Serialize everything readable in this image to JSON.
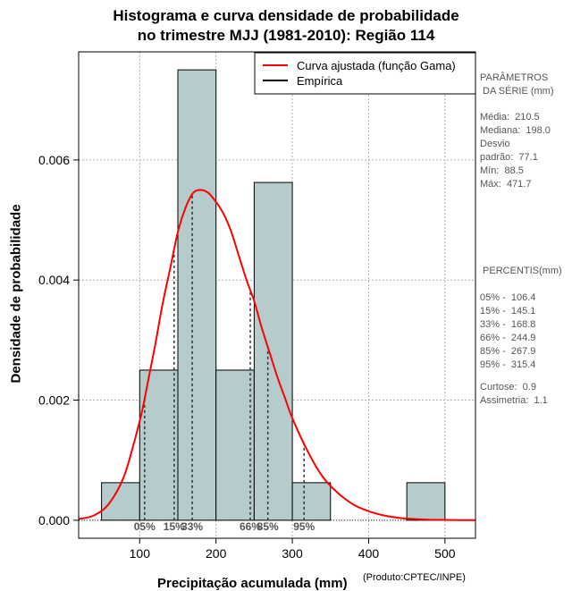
{
  "chart_data": {
    "type": "histogram",
    "title_line1": "Histograma e curva densidade de probabilidade",
    "title_line2": "no trimestre MJJ (1981-2010): Região 114",
    "xlabel": "Precipitação acumulada (mm)",
    "ylabel": "Densidade de probabilidade",
    "credit": "(Produto:CPTEC/INPE)",
    "xlim": [
      20,
      540
    ],
    "ylim": [
      -0.0003,
      0.0078
    ],
    "x_ticks": [
      100,
      200,
      300,
      400,
      500
    ],
    "y_ticks": [
      0.0,
      0.002,
      0.004,
      0.006
    ],
    "y_tick_labels": [
      "0.000",
      "0.002",
      "0.004",
      "0.006"
    ],
    "bins": [
      {
        "start": 50,
        "end": 100,
        "density": 0.000625
      },
      {
        "start": 100,
        "end": 150,
        "density": 0.0025
      },
      {
        "start": 150,
        "end": 200,
        "density": 0.0075
      },
      {
        "start": 200,
        "end": 250,
        "density": 0.0025
      },
      {
        "start": 250,
        "end": 300,
        "density": 0.005625
      },
      {
        "start": 300,
        "end": 350,
        "density": 0.000625
      },
      {
        "start": 350,
        "end": 400,
        "density": 0
      },
      {
        "start": 400,
        "end": 450,
        "density": 0
      },
      {
        "start": 450,
        "end": 500,
        "density": 0.000625
      }
    ],
    "gamma_curve": {
      "x": [
        20,
        40,
        60,
        80,
        100,
        110,
        120,
        130,
        140,
        150,
        160,
        170,
        180,
        190,
        200,
        210,
        220,
        230,
        240,
        250,
        260,
        270,
        280,
        290,
        300,
        320,
        340,
        360,
        380,
        400,
        420,
        440,
        460,
        480,
        500,
        520,
        540
      ],
      "y": [
        2e-05,
        8e-05,
        0.00028,
        0.00075,
        0.00165,
        0.00225,
        0.0029,
        0.0036,
        0.0042,
        0.0048,
        0.0052,
        0.00545,
        0.0055,
        0.00545,
        0.0053,
        0.0051,
        0.0048,
        0.0044,
        0.004,
        0.00365,
        0.0032,
        0.0028,
        0.0024,
        0.00205,
        0.0017,
        0.00115,
        0.00072,
        0.00045,
        0.00026,
        0.00015,
        8e-05,
        4e-05,
        2e-05,
        1e-05,
        5e-06,
        2e-06,
        1e-06
      ]
    },
    "percentile_markers": [
      {
        "label": "05%",
        "value": 106.4
      },
      {
        "label": "15%",
        "value": 145.1
      },
      {
        "label": "33%",
        "value": 168.8
      },
      {
        "label": "66%",
        "value": 244.9
      },
      {
        "label": "85%",
        "value": 267.9
      },
      {
        "label": "95%",
        "value": 315.4
      }
    ],
    "legend": [
      {
        "label": "Curva ajustada (função Gama)",
        "color": "#ff0000"
      },
      {
        "label": "Empírica",
        "color": "#000000"
      }
    ],
    "bar_color": "#b6cccc",
    "grid": true
  },
  "side_panel": {
    "params_title": "PARÂMETROS\n DA SÉRIE (mm)",
    "params_text": "Média:  210.5\nMediana:  198.0\nDesvio\npadrão:  77.1\nMín:  88.5\nMáx:  471.7",
    "percentis_title": " PERCENTIS(mm)",
    "percentis_text": "05% -  106.4\n15% -  145.1\n33% -  168.8\n66% -  244.9\n85% -  267.9\n95% -  315.4",
    "stats_text": "Curtose:  0.9\nAssimetria:  1.1"
  }
}
